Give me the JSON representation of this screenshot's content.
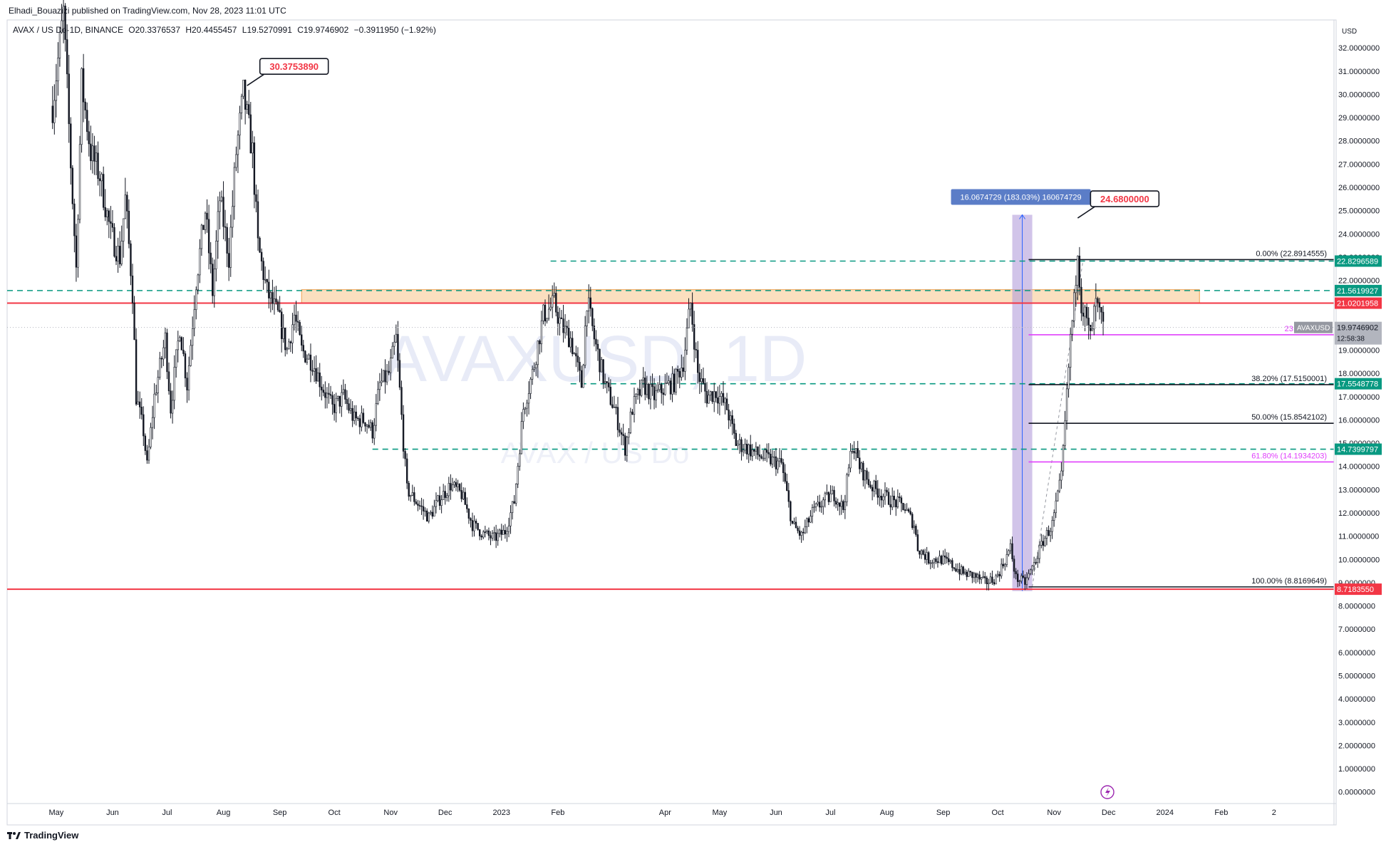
{
  "header": {
    "publisher_line": "Elhadi_Bouazizi published on TradingView.com, Nov 28, 2023 11:01 UTC"
  },
  "legend": {
    "symbol": "AVAX / US Do",
    "interval": "1D, BINANCE",
    "open": "O20.3376537",
    "high": "H20.4455457",
    "low": "L19.5270991",
    "close": "C19.9746902",
    "change": "−0.3911950 (−1.92%)"
  },
  "watermark": {
    "line1": "AVAXUSD, 1D",
    "line2": "AVAX / US Do"
  },
  "footer": {
    "brand": "TradingView",
    "logo_icon": "tradingview-logo-icon"
  },
  "colors": {
    "candle": "#131722",
    "red_line": "#f23645",
    "green_dash": "#089981",
    "zone_fill": "#f7c48a",
    "fib_black": "#131722",
    "fib_magenta": "#e040fb",
    "measure_fill": "#b39ddb",
    "measure_label_bg": "#5b7dc7"
  },
  "chart_data": {
    "type": "candlestick",
    "currency_label": "USD",
    "y_axis": {
      "ylim": [
        -0.5,
        33.2
      ],
      "ticks": [
        "32.0000000",
        "31.0000000",
        "30.0000000",
        "29.0000000",
        "28.0000000",
        "27.0000000",
        "26.0000000",
        "25.0000000",
        "24.0000000",
        "23.0000000",
        "22.0000000",
        "21.0000000",
        "20.0000000",
        "19.0000000",
        "18.0000000",
        "17.0000000",
        "16.0000000",
        "15.0000000",
        "14.0000000",
        "13.0000000",
        "12.0000000",
        "11.0000000",
        "10.0000000",
        "9.0000000",
        "8.0000000",
        "7.0000000",
        "6.0000000",
        "5.0000000",
        "4.0000000",
        "3.0000000",
        "2.0000000",
        "1.0000000",
        "0.0000000"
      ],
      "tick_values": [
        32,
        31,
        30,
        29,
        28,
        27,
        26,
        25,
        24,
        23,
        22,
        21,
        20,
        19,
        18,
        17,
        16,
        15,
        14,
        13,
        12,
        11,
        10,
        9,
        8,
        7,
        6,
        5,
        4,
        3,
        2,
        1,
        0
      ]
    },
    "x_axis": {
      "labels": [
        "May",
        "Jun",
        "Jul",
        "Aug",
        "Sep",
        "Oct",
        "Nov",
        "Dec",
        "2023",
        "Feb",
        "Apr",
        "May",
        "Jun",
        "Jul",
        "Aug",
        "Sep",
        "Oct",
        "Nov",
        "Dec",
        "2024",
        "Feb",
        "2"
      ],
      "label_dates": [
        "2022-05-01",
        "2022-06-01",
        "2022-07-01",
        "2022-08-01",
        "2022-09-01",
        "2022-10-01",
        "2022-11-01",
        "2022-12-01",
        "2023-01-01",
        "2023-02-01",
        "2023-04-01",
        "2023-05-01",
        "2023-06-01",
        "2023-07-01",
        "2023-08-01",
        "2023-09-01",
        "2023-10-01",
        "2023-11-01",
        "2023-12-01",
        "2024-01-01",
        "2024-02-01",
        "2024-03-01"
      ],
      "range": [
        "2022-04-04",
        "2024-04-03"
      ]
    },
    "series": [
      {
        "date": "2022-04-29",
        "close": 29.5
      },
      {
        "date": "2022-05-05",
        "close": 33.5
      },
      {
        "date": "2022-05-09",
        "close": 27.0
      },
      {
        "date": "2022-05-12",
        "close": 22.5
      },
      {
        "date": "2022-05-15",
        "close": 30.5
      },
      {
        "date": "2022-05-20",
        "close": 27.5
      },
      {
        "date": "2022-05-25",
        "close": 26.5
      },
      {
        "date": "2022-05-31",
        "close": 24.0
      },
      {
        "date": "2022-06-05",
        "close": 23.0
      },
      {
        "date": "2022-06-08",
        "close": 25.5
      },
      {
        "date": "2022-06-12",
        "close": 21.5
      },
      {
        "date": "2022-06-14",
        "close": 17.0
      },
      {
        "date": "2022-06-18",
        "close": 15.5
      },
      {
        "date": "2022-06-20",
        "close": 14.0
      },
      {
        "date": "2022-06-24",
        "close": 17.0
      },
      {
        "date": "2022-06-30",
        "close": 19.5
      },
      {
        "date": "2022-07-03",
        "close": 16.5
      },
      {
        "date": "2022-07-08",
        "close": 20.0
      },
      {
        "date": "2022-07-12",
        "close": 17.5
      },
      {
        "date": "2022-07-17",
        "close": 22.0
      },
      {
        "date": "2022-07-22",
        "close": 25.0
      },
      {
        "date": "2022-07-26",
        "close": 21.5
      },
      {
        "date": "2022-07-30",
        "close": 25.5
      },
      {
        "date": "2022-08-04",
        "close": 23.0
      },
      {
        "date": "2022-08-08",
        "close": 27.5
      },
      {
        "date": "2022-08-12",
        "close": 30.0
      },
      {
        "date": "2022-08-14",
        "close": 29.0
      },
      {
        "date": "2022-08-17",
        "close": 27.5
      },
      {
        "date": "2022-08-20",
        "close": 23.5
      },
      {
        "date": "2022-08-25",
        "close": 21.5
      },
      {
        "date": "2022-08-31",
        "close": 20.5
      },
      {
        "date": "2022-09-05",
        "close": 19.0
      },
      {
        "date": "2022-09-09",
        "close": 20.5
      },
      {
        "date": "2022-09-13",
        "close": 19.0
      },
      {
        "date": "2022-09-19",
        "close": 18.5
      },
      {
        "date": "2022-09-24",
        "close": 17.5
      },
      {
        "date": "2022-09-30",
        "close": 16.5
      },
      {
        "date": "2022-10-06",
        "close": 17.0
      },
      {
        "date": "2022-10-12",
        "close": 16.0
      },
      {
        "date": "2022-10-18",
        "close": 16.0
      },
      {
        "date": "2022-10-22",
        "close": 15.5
      },
      {
        "date": "2022-10-26",
        "close": 17.5
      },
      {
        "date": "2022-10-31",
        "close": 18.0
      },
      {
        "date": "2022-11-04",
        "close": 19.5
      },
      {
        "date": "2022-11-08",
        "close": 15.0
      },
      {
        "date": "2022-11-10",
        "close": 13.0
      },
      {
        "date": "2022-11-15",
        "close": 12.5
      },
      {
        "date": "2022-11-22",
        "close": 11.8
      },
      {
        "date": "2022-11-28",
        "close": 12.6
      },
      {
        "date": "2022-12-04",
        "close": 13.2
      },
      {
        "date": "2022-12-10",
        "close": 12.8
      },
      {
        "date": "2022-12-16",
        "close": 11.5
      },
      {
        "date": "2022-12-22",
        "close": 11.1
      },
      {
        "date": "2022-12-28",
        "close": 10.9
      },
      {
        "date": "2023-01-03",
        "close": 11.2
      },
      {
        "date": "2023-01-08",
        "close": 12.5
      },
      {
        "date": "2023-01-13",
        "close": 16.5
      },
      {
        "date": "2023-01-18",
        "close": 18.0
      },
      {
        "date": "2023-01-24",
        "close": 20.5
      },
      {
        "date": "2023-01-30",
        "close": 21.0
      },
      {
        "date": "2023-02-03",
        "close": 20.0
      },
      {
        "date": "2023-02-08",
        "close": 19.5
      },
      {
        "date": "2023-02-14",
        "close": 17.5
      },
      {
        "date": "2023-02-17",
        "close": 21.2
      },
      {
        "date": "2023-02-21",
        "close": 19.5
      },
      {
        "date": "2023-02-27",
        "close": 17.5
      },
      {
        "date": "2023-03-04",
        "close": 16.5
      },
      {
        "date": "2023-03-10",
        "close": 14.8
      },
      {
        "date": "2023-03-14",
        "close": 16.5
      },
      {
        "date": "2023-03-20",
        "close": 17.5
      },
      {
        "date": "2023-03-26",
        "close": 17.0
      },
      {
        "date": "2023-04-01",
        "close": 17.4
      },
      {
        "date": "2023-04-06",
        "close": 17.6
      },
      {
        "date": "2023-04-11",
        "close": 18.5
      },
      {
        "date": "2023-04-15",
        "close": 21.0
      },
      {
        "date": "2023-04-19",
        "close": 18.0
      },
      {
        "date": "2023-04-24",
        "close": 17.0
      },
      {
        "date": "2023-04-29",
        "close": 17.2
      },
      {
        "date": "2023-05-05",
        "close": 16.5
      },
      {
        "date": "2023-05-10",
        "close": 15.0
      },
      {
        "date": "2023-05-16",
        "close": 14.8
      },
      {
        "date": "2023-05-22",
        "close": 14.5
      },
      {
        "date": "2023-05-28",
        "close": 14.3
      },
      {
        "date": "2023-06-04",
        "close": 14.1
      },
      {
        "date": "2023-06-10",
        "close": 11.5
      },
      {
        "date": "2023-06-15",
        "close": 11.0
      },
      {
        "date": "2023-06-21",
        "close": 12.0
      },
      {
        "date": "2023-06-27",
        "close": 12.5
      },
      {
        "date": "2023-07-03",
        "close": 12.8
      },
      {
        "date": "2023-07-08",
        "close": 12.2
      },
      {
        "date": "2023-07-13",
        "close": 15.0
      },
      {
        "date": "2023-07-17",
        "close": 14.0
      },
      {
        "date": "2023-07-23",
        "close": 13.2
      },
      {
        "date": "2023-07-29",
        "close": 12.8
      },
      {
        "date": "2023-08-04",
        "close": 12.5
      },
      {
        "date": "2023-08-10",
        "close": 12.3
      },
      {
        "date": "2023-08-16",
        "close": 11.5
      },
      {
        "date": "2023-08-18",
        "close": 10.5
      },
      {
        "date": "2023-08-24",
        "close": 10.0
      },
      {
        "date": "2023-08-31",
        "close": 10.0
      },
      {
        "date": "2023-09-07",
        "close": 9.7
      },
      {
        "date": "2023-09-12",
        "close": 9.4
      },
      {
        "date": "2023-09-18",
        "close": 9.3
      },
      {
        "date": "2023-09-24",
        "close": 9.0
      },
      {
        "date": "2023-09-30",
        "close": 9.2
      },
      {
        "date": "2023-10-04",
        "close": 9.8
      },
      {
        "date": "2023-10-08",
        "close": 10.5
      },
      {
        "date": "2023-10-11",
        "close": 9.2
      },
      {
        "date": "2023-10-16",
        "close": 9.0
      },
      {
        "date": "2023-10-21",
        "close": 9.8
      },
      {
        "date": "2023-10-26",
        "close": 10.8
      },
      {
        "date": "2023-10-31",
        "close": 11.5
      },
      {
        "date": "2023-11-05",
        "close": 13.5
      },
      {
        "date": "2023-11-08",
        "close": 17.0
      },
      {
        "date": "2023-11-10",
        "close": 19.5
      },
      {
        "date": "2023-11-12",
        "close": 21.0
      },
      {
        "date": "2023-11-14",
        "close": 23.5
      },
      {
        "date": "2023-11-16",
        "close": 21.0
      },
      {
        "date": "2023-11-18",
        "close": 20.5
      },
      {
        "date": "2023-11-21",
        "close": 19.5
      },
      {
        "date": "2023-11-24",
        "close": 21.0
      },
      {
        "date": "2023-11-28",
        "close": 19.97
      }
    ],
    "horizontal_lines": [
      {
        "kind": "solid-red",
        "value": 21.0201958,
        "label": "21.0201958"
      },
      {
        "kind": "solid-red",
        "value": 8.718355,
        "label": "8.7183550"
      },
      {
        "kind": "dashed-green",
        "value": 21.5619927,
        "label": "21.5619927"
      },
      {
        "kind": "dashed-green",
        "value": 22.8296589,
        "label": "22.8296589"
      },
      {
        "kind": "dashed-green",
        "value": 17.5548778,
        "label": "17.5548778"
      },
      {
        "kind": "dashed-green",
        "value": 14.7399797,
        "label": "14.7399797"
      }
    ],
    "zone": {
      "from": 21.0201958,
      "to": 21.6,
      "start": "2022-09-13",
      "end": "2024-01-20"
    },
    "fibonacci": [
      {
        "level": "0.00%",
        "value": 22.8914555,
        "label": "0.00% (22.8914555)",
        "color": "black"
      },
      {
        "level": "23.60%",
        "value": 19.66,
        "label": "23.60% (19.",
        "color": "magenta"
      },
      {
        "level": "38.20%",
        "value": 17.5150001,
        "label": "38.20% (17.5150001)",
        "color": "black"
      },
      {
        "level": "50.00%",
        "value": 15.8542102,
        "label": "50.00% (15.8542102)",
        "color": "black"
      },
      {
        "level": "61.80%",
        "value": 14.1934203,
        "label": "61.80% (14.1934203)",
        "color": "magenta"
      },
      {
        "level": "100.00%",
        "value": 8.8169649,
        "label": "100.00% (8.8169649)",
        "color": "black"
      }
    ],
    "fib_range": {
      "start": "2023-10-18",
      "end": "2024-04-03"
    },
    "annotations": [
      {
        "text": "30.3753890",
        "date": "2022-08-14",
        "value": 30.375389
      },
      {
        "text": "24.6800000",
        "date": "2023-11-14",
        "value": 24.68
      }
    ],
    "measure": {
      "label": "16.0674729 (183.03%) 160674729",
      "start": "2023-10-09",
      "end": "2023-10-20",
      "from": 8.64,
      "to": 24.82
    },
    "last_price": {
      "symbol": "AVAXUSD",
      "value": "19.9746902",
      "countdown": "12:58:38",
      "numeric": 19.9746902
    }
  }
}
